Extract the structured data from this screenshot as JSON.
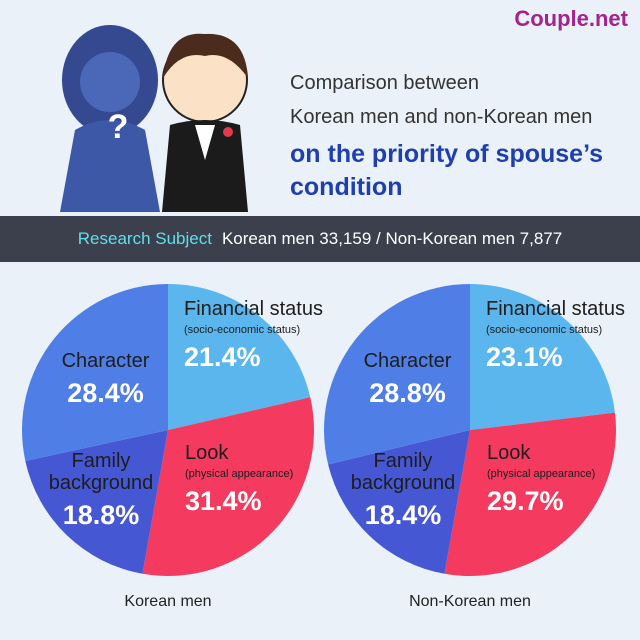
{
  "brand": "Couple.net",
  "title": {
    "lines": [
      "Comparison between",
      "Korean men and non-Korean men"
    ],
    "highlight": [
      "on the priority of spouse’s",
      "condition"
    ]
  },
  "banner": {
    "label": "Research Subject",
    "text": "Korean men 33,159 / Non-Korean men 7,877"
  },
  "chart_data": [
    {
      "type": "pie",
      "title": "Korean men",
      "categories": [
        "Financial status",
        "Look",
        "Family background",
        "Character"
      ],
      "category_notes": [
        "(socio-economic status)",
        "(physical appearance)",
        null,
        null
      ],
      "values": [
        21.4,
        31.4,
        18.8,
        28.4
      ],
      "value_labels": [
        "21.4%",
        "31.4%",
        "18.8%",
        "28.4%"
      ],
      "colors": [
        "#5bb6ee",
        "#f43a5f",
        "#4657d4",
        "#4f7fe6"
      ]
    },
    {
      "type": "pie",
      "title": "Non-Korean men",
      "categories": [
        "Financial status",
        "Look",
        "Family background",
        "Character"
      ],
      "category_notes": [
        "(socio-economic status)",
        "(physical appearance)",
        null,
        null
      ],
      "values": [
        23.1,
        29.7,
        18.4,
        28.8
      ],
      "value_labels": [
        "23.1%",
        "29.7%",
        "18.4%",
        "28.8%"
      ],
      "colors": [
        "#5bb6ee",
        "#f43a5f",
        "#4657d4",
        "#4f7fe6"
      ]
    }
  ]
}
